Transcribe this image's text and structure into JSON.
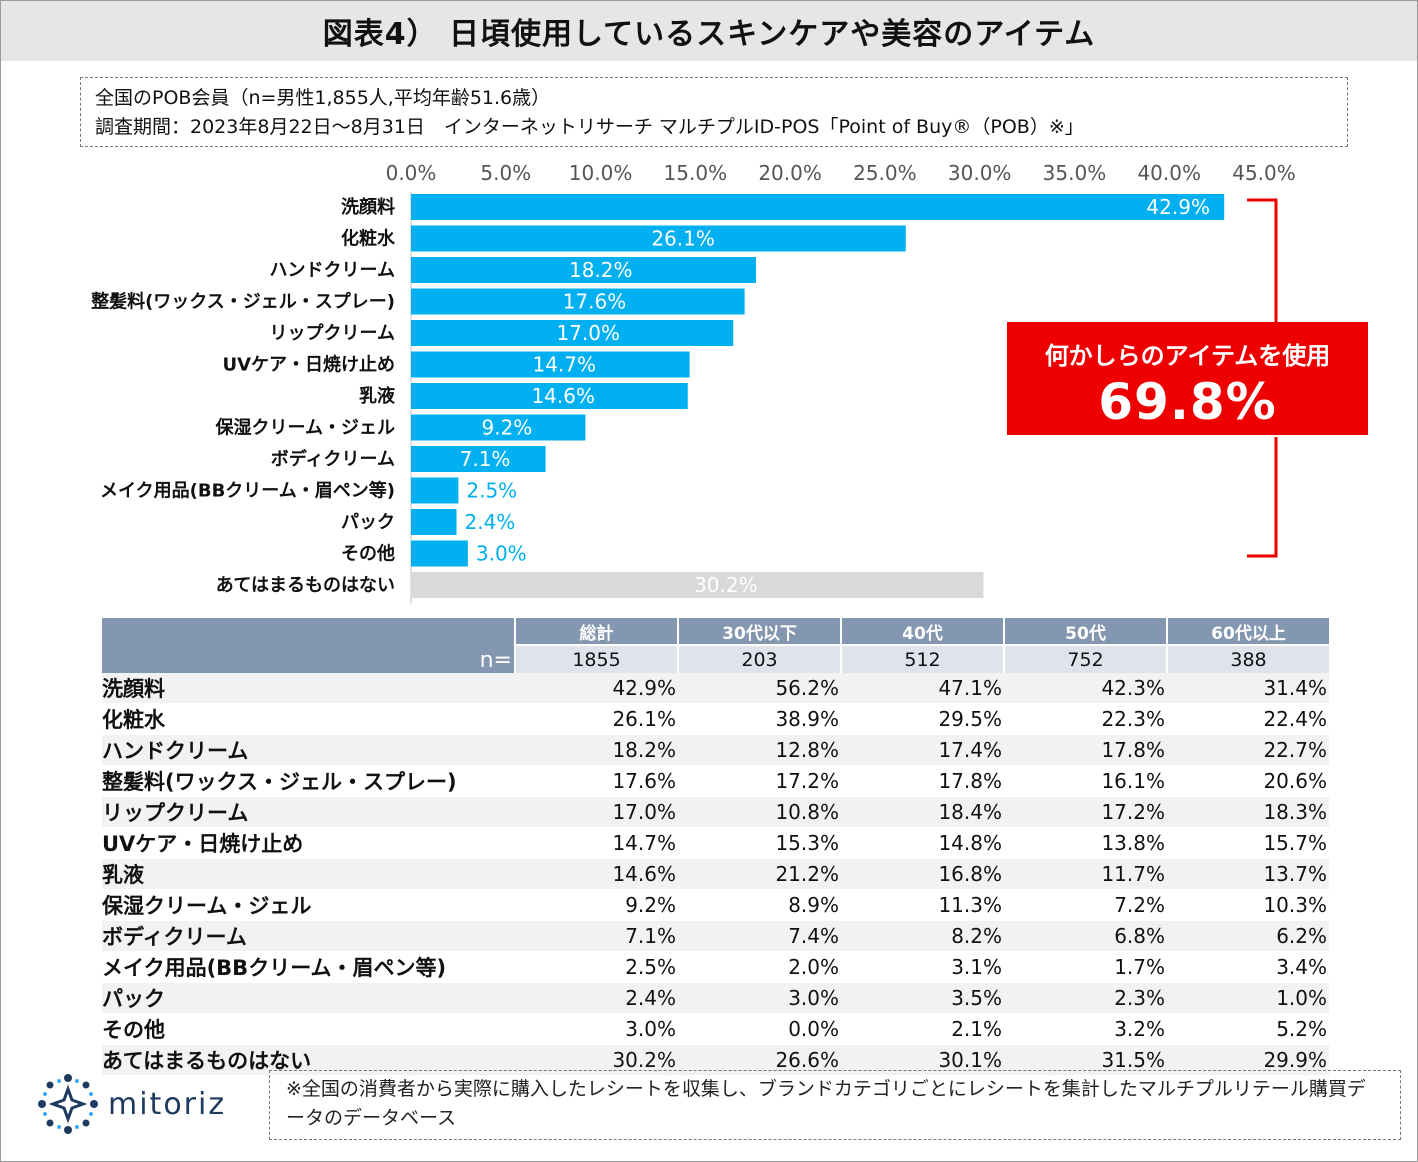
{
  "title": "図表4） 日頃使用しているスキンケアや美容のアイテム",
  "survey": {
    "line1": "全国のPOB会員（n=男性1,855人,平均年齢51.6歳）",
    "line2": "調査期間：2023年8月22日～8月31日　インターネットリサーチ マルチプルID-POS「Point of Buy®（POB）※」"
  },
  "chart_data": {
    "type": "bar",
    "orientation": "horizontal",
    "categories": [
      "洗顔料",
      "化粧水",
      "ハンドクリーム",
      "整髪料(ワックス・ジェル・スプレー)",
      "リップクリーム",
      "UVケア・日焼け止め",
      "乳液",
      "保湿クリーム・ジェル",
      "ボディクリーム",
      "メイク用品(BBクリーム・眉ペン等)",
      "パック",
      "その他",
      "あてはまるものはない"
    ],
    "values": [
      42.9,
      26.1,
      18.2,
      17.6,
      17.0,
      14.7,
      14.6,
      9.2,
      7.1,
      2.5,
      2.4,
      3.0,
      30.2
    ],
    "value_labels": [
      "42.9%",
      "26.1%",
      "18.2%",
      "17.6%",
      "17.0%",
      "14.7%",
      "14.6%",
      "9.2%",
      "7.1%",
      "2.5%",
      "2.4%",
      "3.0%",
      "30.2%"
    ],
    "xticks": [
      "0.0%",
      "5.0%",
      "10.0%",
      "15.0%",
      "20.0%",
      "25.0%",
      "30.0%",
      "35.0%",
      "40.0%",
      "45.0%"
    ],
    "xlim": [
      0,
      45
    ],
    "axis_position": "top",
    "colors": {
      "bar": "#00b0f0",
      "none_bar": "#d9d9d9",
      "label_inside": "#ffffff",
      "label_outside": "#00b0f0",
      "bracket": "#ee0000"
    },
    "callout": {
      "label": "何かしらのアイテムを使用",
      "value": "69.8%"
    }
  },
  "table": {
    "n_label": "n=",
    "columns": [
      "総計",
      "30代以下",
      "40代",
      "50代",
      "60代以上"
    ],
    "n_values": [
      "1855",
      "203",
      "512",
      "752",
      "388"
    ],
    "rows": [
      {
        "label": "洗顔料",
        "values": [
          "42.9%",
          "56.2%",
          "47.1%",
          "42.3%",
          "31.4%"
        ]
      },
      {
        "label": "化粧水",
        "values": [
          "26.1%",
          "38.9%",
          "29.5%",
          "22.3%",
          "22.4%"
        ]
      },
      {
        "label": "ハンドクリーム",
        "values": [
          "18.2%",
          "12.8%",
          "17.4%",
          "17.8%",
          "22.7%"
        ]
      },
      {
        "label": "整髪料(ワックス・ジェル・スプレー)",
        "values": [
          "17.6%",
          "17.2%",
          "17.8%",
          "16.1%",
          "20.6%"
        ]
      },
      {
        "label": "リップクリーム",
        "values": [
          "17.0%",
          "10.8%",
          "18.4%",
          "17.2%",
          "18.3%"
        ]
      },
      {
        "label": "UVケア・日焼け止め",
        "values": [
          "14.7%",
          "15.3%",
          "14.8%",
          "13.8%",
          "15.7%"
        ]
      },
      {
        "label": "乳液",
        "values": [
          "14.6%",
          "21.2%",
          "16.8%",
          "11.7%",
          "13.7%"
        ]
      },
      {
        "label": "保湿クリーム・ジェル",
        "values": [
          "9.2%",
          "8.9%",
          "11.3%",
          "7.2%",
          "10.3%"
        ]
      },
      {
        "label": "ボディクリーム",
        "values": [
          "7.1%",
          "7.4%",
          "8.2%",
          "6.8%",
          "6.2%"
        ]
      },
      {
        "label": "メイク用品(BBクリーム・眉ペン等)",
        "values": [
          "2.5%",
          "2.0%",
          "3.1%",
          "1.7%",
          "3.4%"
        ]
      },
      {
        "label": "パック",
        "values": [
          "2.4%",
          "3.0%",
          "3.5%",
          "2.3%",
          "1.0%"
        ]
      },
      {
        "label": "その他",
        "values": [
          "3.0%",
          "0.0%",
          "2.1%",
          "3.2%",
          "5.2%"
        ]
      },
      {
        "label": "あてはまるものはない",
        "values": [
          "30.2%",
          "26.6%",
          "30.1%",
          "31.5%",
          "29.9%"
        ]
      }
    ]
  },
  "logo": {
    "text": "mitoriz",
    "icon": "sparkle-ring-icon",
    "color": "#1e3a5f",
    "accent": "#3fa9f5"
  },
  "footnote": "※全国の消費者から実際に購入したレシートを収集し、ブランドカテゴリごとにレシートを集計したマルチプルリテール購買データのデータベース"
}
